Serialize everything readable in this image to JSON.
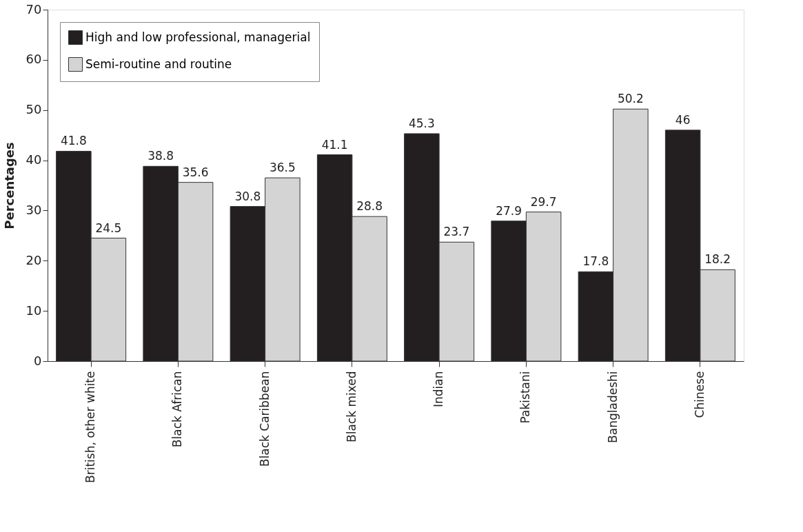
{
  "chart_data": {
    "type": "bar",
    "ylabel": "Percentages",
    "categories": [
      "British, other white",
      "Black African",
      "Black Caribbean",
      "Black mixed",
      "Indian",
      "Pakistani",
      "Bangladeshi",
      "Chinese"
    ],
    "series": [
      {
        "name": "High and low professional, managerial",
        "color": "#231f20",
        "values": [
          41.8,
          38.8,
          30.8,
          41.1,
          45.3,
          27.9,
          17.8,
          46
        ]
      },
      {
        "name": "Semi-routine and routine",
        "color": "#d4d4d4",
        "values": [
          24.5,
          35.6,
          36.5,
          28.8,
          23.7,
          29.7,
          50.2,
          18.2
        ]
      }
    ],
    "ylim": [
      0,
      70
    ],
    "yticks": [
      0,
      10,
      20,
      30,
      40,
      50,
      60,
      70
    ],
    "data_labels": true,
    "grid": false,
    "legend": "top left"
  }
}
